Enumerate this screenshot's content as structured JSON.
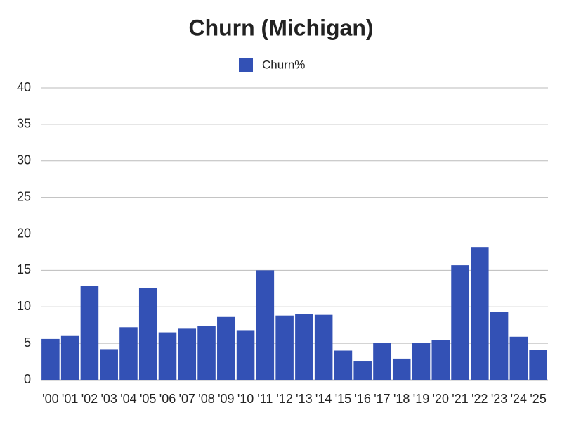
{
  "chart_data": {
    "type": "bar",
    "title": "Churn (Michigan)",
    "categories": [
      "'00",
      "'01",
      "'02",
      "'03",
      "'04",
      "'05",
      "'06",
      "'07",
      "'08",
      "'09",
      "'10",
      "'11",
      "'12",
      "'13",
      "'14",
      "'15",
      "'16",
      "'17",
      "'18",
      "'19",
      "'20",
      "'21",
      "'22",
      "'23",
      "'24",
      "'25"
    ],
    "series": [
      {
        "name": "Churn%",
        "color": "#3351b5",
        "values": [
          5.6,
          6.0,
          12.9,
          4.2,
          7.2,
          12.6,
          6.5,
          7.0,
          7.4,
          8.6,
          6.8,
          15.0,
          8.8,
          9.0,
          8.9,
          4.0,
          2.6,
          5.1,
          2.9,
          5.1,
          5.4,
          15.7,
          18.2,
          9.3,
          5.9,
          4.1
        ]
      }
    ],
    "ylim": [
      0,
      40
    ],
    "yticks": [
      0,
      5,
      10,
      15,
      20,
      25,
      30,
      35,
      40
    ],
    "grid": true,
    "legend": "top"
  }
}
